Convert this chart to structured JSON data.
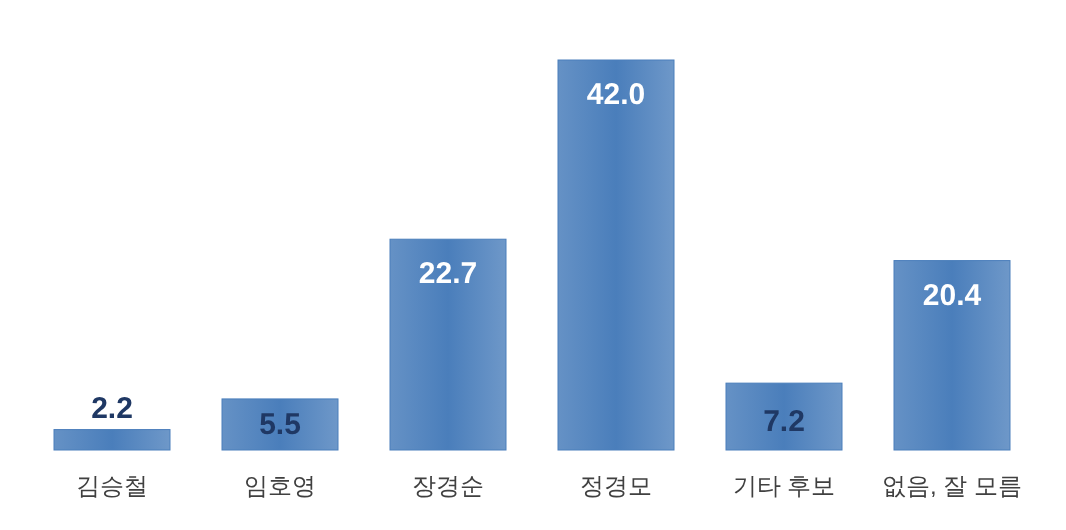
{
  "chart_data": {
    "type": "bar",
    "categories": [
      "김승철",
      "임호영",
      "장경순",
      "정경모",
      "기타 후보",
      "없음, 잘 모름"
    ],
    "values": [
      2.2,
      5.5,
      22.7,
      42.0,
      7.2,
      20.4
    ],
    "value_labels": [
      "2.2",
      "5.5",
      "22.7",
      "42.0",
      "7.2",
      "20.4"
    ],
    "color": "#4a7ebb",
    "data_labels": true
  }
}
